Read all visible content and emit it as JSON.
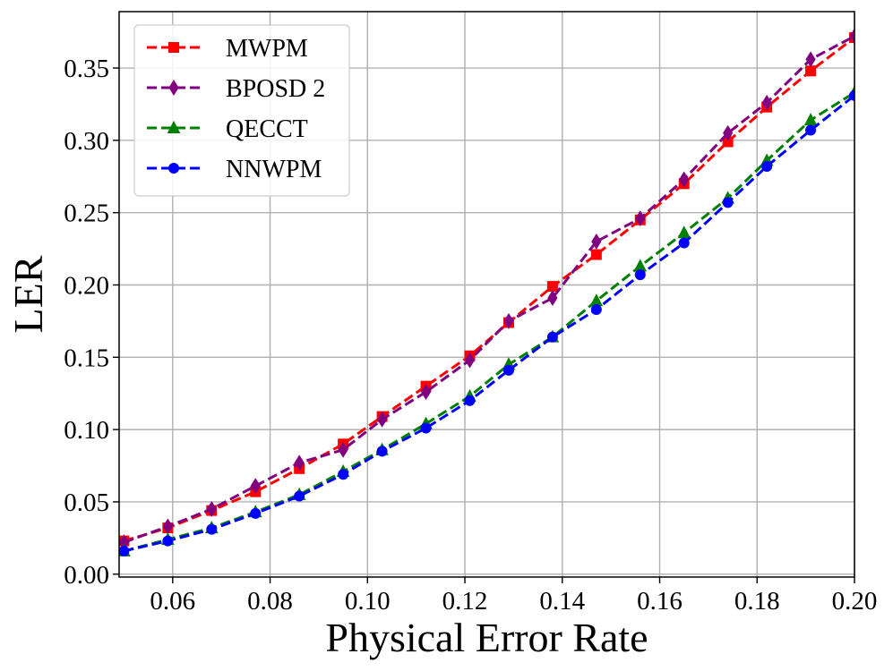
{
  "chart_data": {
    "type": "line",
    "title": "",
    "xlabel": "Physical Error Rate",
    "ylabel": "LER",
    "xlim": [
      0.049,
      0.2
    ],
    "ylim": [
      -0.002,
      0.389
    ],
    "grid": true,
    "legend_position": "top-left",
    "x": [
      0.05,
      0.059,
      0.068,
      0.077,
      0.086,
      0.095,
      0.103,
      0.112,
      0.121,
      0.129,
      0.138,
      0.147,
      0.156,
      0.165,
      0.174,
      0.182,
      0.191,
      0.2
    ],
    "xticks": [
      0.06,
      0.08,
      0.1,
      0.12,
      0.14,
      0.16,
      0.18,
      0.2
    ],
    "xtick_labels": [
      "0.06",
      "0.08",
      "0.10",
      "0.12",
      "0.14",
      "0.16",
      "0.18",
      "0.20"
    ],
    "yticks": [
      0.0,
      0.05,
      0.1,
      0.15,
      0.2,
      0.25,
      0.3,
      0.35
    ],
    "ytick_labels": [
      "0.00",
      "0.05",
      "0.10",
      "0.15",
      "0.20",
      "0.25",
      "0.30",
      "0.35"
    ],
    "series": [
      {
        "name": "MWPM",
        "color": "#ff0000",
        "marker": "square",
        "values": [
          0.023,
          0.032,
          0.044,
          0.057,
          0.073,
          0.09,
          0.109,
          0.13,
          0.151,
          0.174,
          0.199,
          0.221,
          0.245,
          0.27,
          0.299,
          0.323,
          0.348,
          0.371
        ]
      },
      {
        "name": "BPOSD 2",
        "color": "#800080",
        "marker": "diamond",
        "values": [
          0.022,
          0.033,
          0.045,
          0.061,
          0.077,
          0.086,
          0.107,
          0.126,
          0.148,
          0.175,
          0.191,
          0.23,
          0.246,
          0.273,
          0.305,
          0.326,
          0.356,
          0.372
        ]
      },
      {
        "name": "QECCT",
        "color": "#008000",
        "marker": "triangle",
        "values": [
          0.016,
          0.024,
          0.032,
          0.043,
          0.055,
          0.071,
          0.086,
          0.104,
          0.123,
          0.145,
          0.164,
          0.189,
          0.213,
          0.236,
          0.26,
          0.286,
          0.314,
          0.333
        ]
      },
      {
        "name": "NNWPM",
        "color": "#0000ff",
        "marker": "circle",
        "values": [
          0.016,
          0.023,
          0.031,
          0.042,
          0.054,
          0.069,
          0.085,
          0.101,
          0.12,
          0.141,
          0.164,
          0.183,
          0.207,
          0.229,
          0.257,
          0.282,
          0.307,
          0.331
        ]
      }
    ]
  }
}
